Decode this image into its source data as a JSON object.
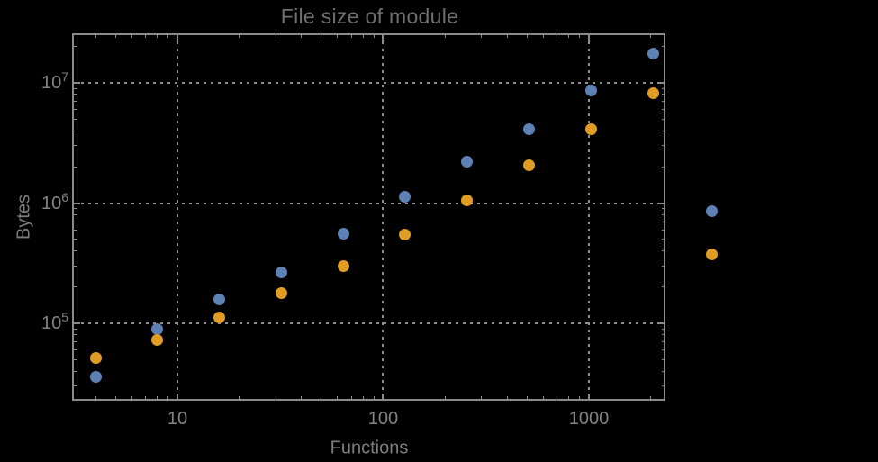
{
  "chart_data": {
    "type": "scatter",
    "title": "File size of module",
    "xlabel": "Functions",
    "ylabel": "Bytes",
    "x_scale": "log",
    "y_scale": "log",
    "x_range": [
      3.14,
      2354
    ],
    "y_range": [
      23100,
      25390000
    ],
    "grid": {
      "style": "dotted",
      "color": "#8f8f8f",
      "x_lines": [
        10,
        100,
        1000
      ],
      "y_lines": [
        100000,
        1000000,
        10000000
      ]
    },
    "frame_color": "#8a8a8a",
    "x_major_ticks": [
      {
        "value": 10,
        "label": "10"
      },
      {
        "value": 100,
        "label": "100"
      },
      {
        "value": 1000,
        "label": "1000"
      }
    ],
    "y_major_ticks": [
      {
        "value": 100000,
        "mantissa": "10",
        "exponent": "5"
      },
      {
        "value": 1000000,
        "mantissa": "10",
        "exponent": "6"
      },
      {
        "value": 10000000,
        "mantissa": "10",
        "exponent": "7"
      }
    ],
    "x_minor_ticks": [
      4,
      5,
      6,
      7,
      8,
      9,
      20,
      30,
      40,
      50,
      60,
      70,
      80,
      90,
      200,
      300,
      400,
      500,
      600,
      700,
      800,
      900,
      2000
    ],
    "y_minor_ticks": [
      30000,
      40000,
      50000,
      60000,
      70000,
      80000,
      90000,
      200000,
      300000,
      400000,
      500000,
      600000,
      700000,
      800000,
      900000,
      2000000,
      3000000,
      4000000,
      5000000,
      6000000,
      7000000,
      8000000,
      9000000,
      20000000
    ],
    "series": [
      {
        "name": "blue-series",
        "color": "#5e81b5",
        "marker": "circle",
        "points": [
          [
            4,
            35800
          ],
          [
            8,
            90000
          ],
          [
            16,
            157000
          ],
          [
            32,
            267000
          ],
          [
            64,
            560000
          ],
          [
            128,
            1120000
          ],
          [
            256,
            2230000
          ],
          [
            512,
            4150000
          ],
          [
            1024,
            8570000
          ],
          [
            2048,
            17400000
          ]
        ]
      },
      {
        "name": "orange-series",
        "color": "#e19c24",
        "marker": "circle",
        "points": [
          [
            4,
            51500
          ],
          [
            8,
            73000
          ],
          [
            16,
            111000
          ],
          [
            32,
            177000
          ],
          [
            64,
            300000
          ],
          [
            128,
            550000
          ],
          [
            256,
            1060000
          ],
          [
            512,
            2080000
          ],
          [
            1024,
            4150000
          ],
          [
            2048,
            8270000
          ]
        ]
      }
    ],
    "legend": {
      "labels_visible": false,
      "markers": [
        {
          "series": "blue-series",
          "color": "#5e81b5",
          "x": 790,
          "y": 234
        },
        {
          "series": "orange-series",
          "color": "#e19c24",
          "x": 790,
          "y": 282
        }
      ]
    }
  },
  "style": {
    "background": "#000000",
    "title_color": "#6e6e6e",
    "tick_label_color": "#838383",
    "axis_label_color": "#7d7d7d"
  }
}
